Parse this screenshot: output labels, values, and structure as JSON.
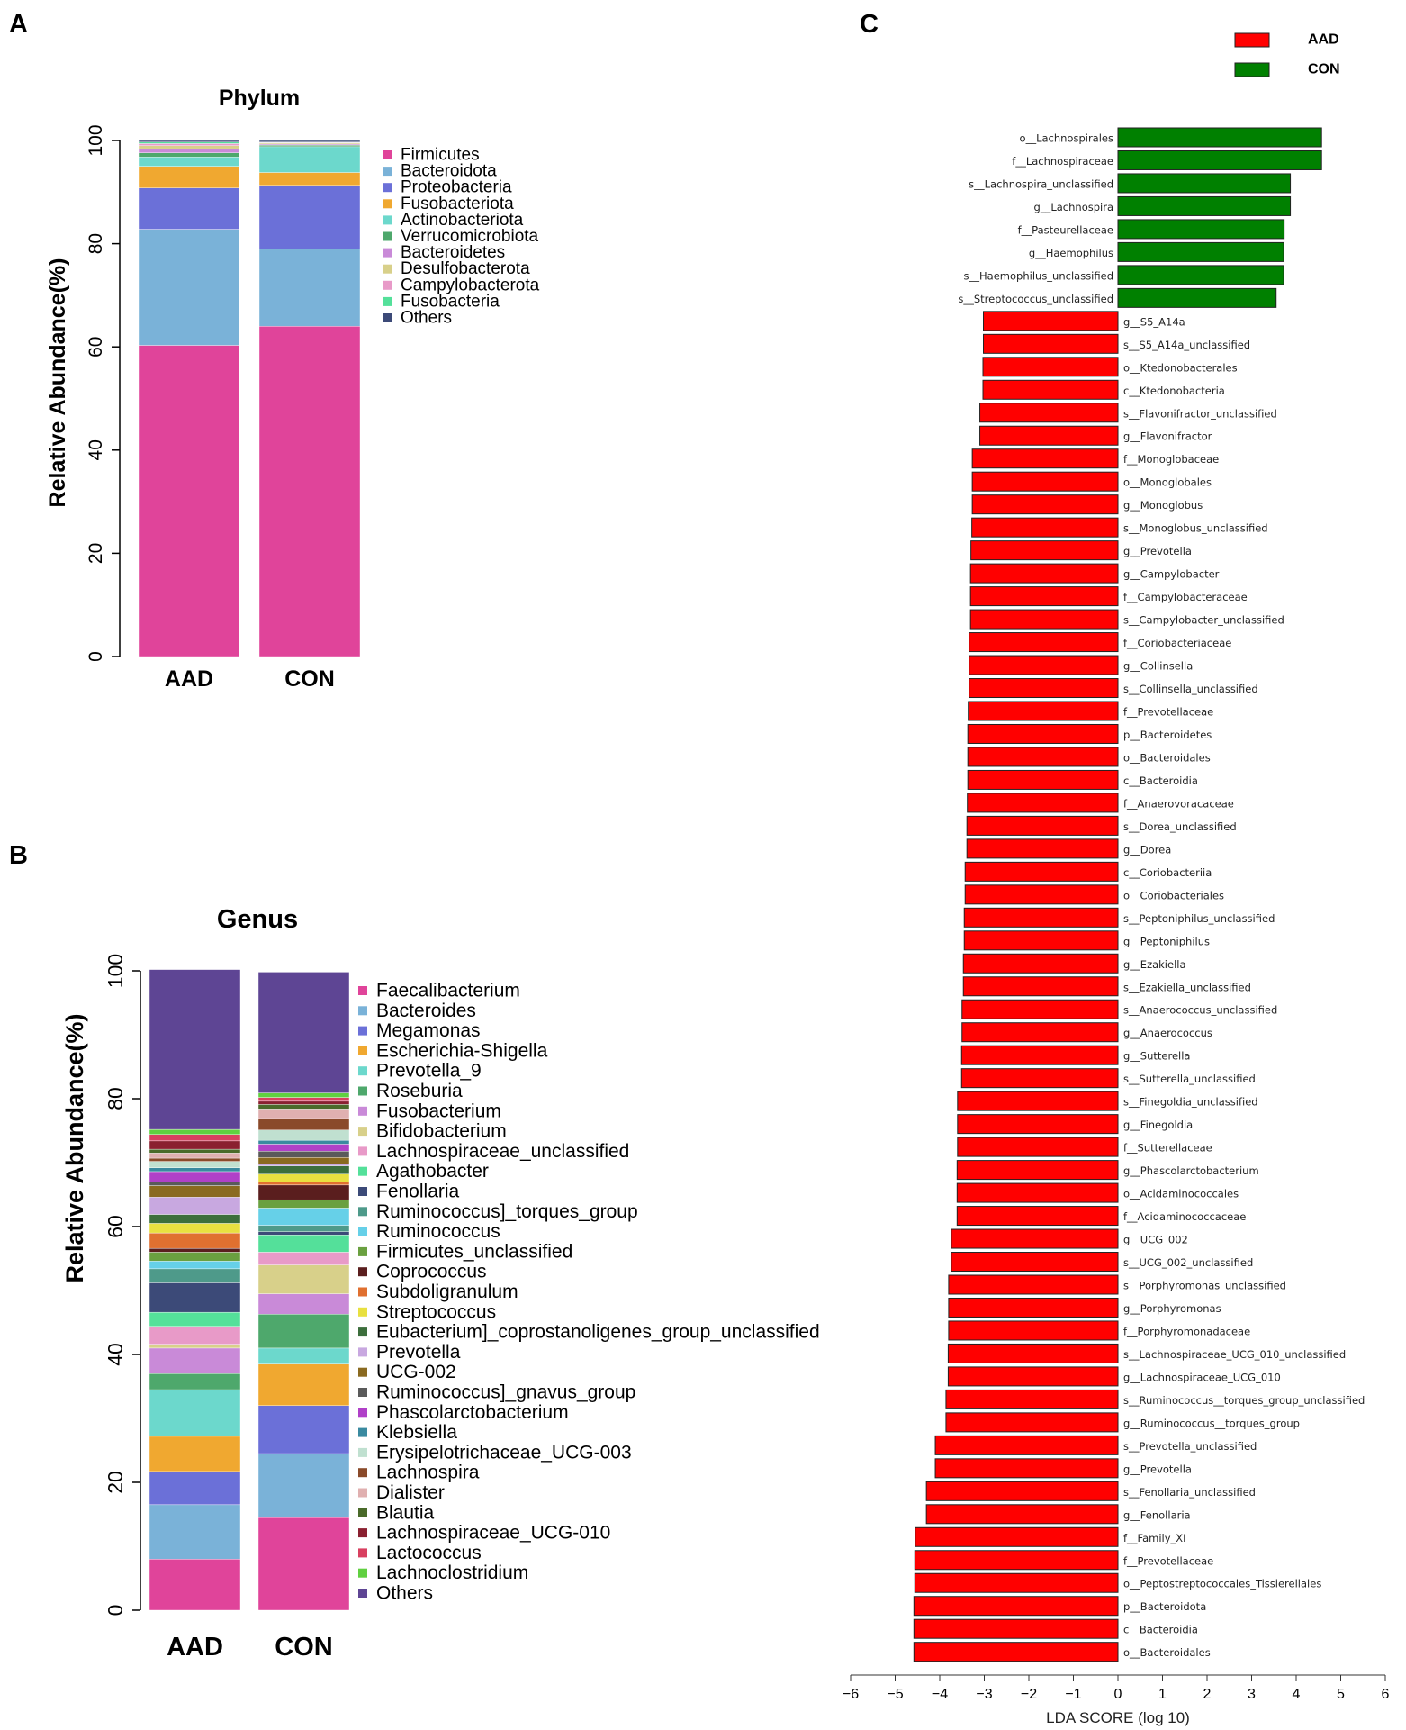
{
  "panels": {
    "a": "A",
    "b": "B",
    "c": "C"
  },
  "chart_data": [
    {
      "type": "bar",
      "stacked": true,
      "title": "Phylum",
      "ylabel": "Relative Abundance(%)",
      "xlabel": "",
      "ylim": [
        0,
        100
      ],
      "yticks": [
        "0",
        "20",
        "40",
        "60",
        "80",
        "100"
      ],
      "categories": [
        "AAD",
        "CON"
      ],
      "series": [
        {
          "name": "Firmicutes",
          "color": "#e0449a",
          "values": [
            60.3,
            64.0
          ]
        },
        {
          "name": "Bacteroidota",
          "color": "#7ab2d8",
          "values": [
            22.5,
            15.0
          ]
        },
        {
          "name": "Proteobacteria",
          "color": "#6b70d8",
          "values": [
            8.0,
            12.3
          ]
        },
        {
          "name": "Fusobacteriota",
          "color": "#f0a830",
          "values": [
            4.2,
            2.5
          ]
        },
        {
          "name": "Actinobacteriota",
          "color": "#6cd8cc",
          "values": [
            1.8,
            5.0
          ]
        },
        {
          "name": "Verrucomicrobiota",
          "color": "#4ea86c",
          "values": [
            0.8,
            0.3
          ]
        },
        {
          "name": "Bacteroidetes",
          "color": "#c98ad8",
          "values": [
            0.8,
            0.2
          ]
        },
        {
          "name": "Desulfobacterota",
          "color": "#d8d08a",
          "values": [
            0.6,
            0.2
          ]
        },
        {
          "name": "Campylobacterota",
          "color": "#e89ac8",
          "values": [
            0.4,
            0.1
          ]
        },
        {
          "name": "Fusobacteria",
          "color": "#54e09a",
          "values": [
            0.3,
            0.1
          ]
        },
        {
          "name": "Others",
          "color": "#3c4a78",
          "values": [
            0.3,
            0.3
          ]
        }
      ]
    },
    {
      "type": "bar",
      "stacked": true,
      "title": "Genus",
      "ylabel": "Relative Abundance(%)",
      "xlabel": "",
      "ylim": [
        0,
        100
      ],
      "yticks": [
        "0",
        "20",
        "40",
        "60",
        "80",
        "100"
      ],
      "categories": [
        "AAD",
        "CON"
      ],
      "series": [
        {
          "name": "Faecalibacterium",
          "color": "#e0449a",
          "values": [
            8.0,
            14.5
          ]
        },
        {
          "name": "Bacteroides",
          "color": "#7ab2d8",
          "values": [
            8.5,
            10.0
          ]
        },
        {
          "name": "Megamonas",
          "color": "#6b70d8",
          "values": [
            5.2,
            7.5
          ]
        },
        {
          "name": "Escherichia-Shigella",
          "color": "#f0a830",
          "values": [
            5.5,
            6.5
          ]
        },
        {
          "name": "Prevotella_9",
          "color": "#6cd8cc",
          "values": [
            7.3,
            2.5
          ]
        },
        {
          "name": "Roseburia",
          "color": "#4ea86c",
          "values": [
            2.5,
            5.3
          ]
        },
        {
          "name": "Fusobacterium",
          "color": "#c98ad8",
          "values": [
            4.0,
            3.2
          ]
        },
        {
          "name": "Bifidobacterium",
          "color": "#d8d08a",
          "values": [
            0.6,
            4.5
          ]
        },
        {
          "name": "Lachnospiraceae_unclassified",
          "color": "#e89ac8",
          "values": [
            2.8,
            2.0
          ]
        },
        {
          "name": "Agathobacter",
          "color": "#54e09a",
          "values": [
            2.2,
            2.7
          ]
        },
        {
          "name": "Fenollaria",
          "color": "#3c4a78",
          "values": [
            4.6,
            0.5
          ]
        },
        {
          "name": "Ruminococcus]_torques_group",
          "color": "#4e9a8a",
          "values": [
            2.2,
            1.0
          ]
        },
        {
          "name": "Ruminococcus",
          "color": "#66d0e8",
          "values": [
            1.2,
            2.7
          ]
        },
        {
          "name": "Firmicutes_unclassified",
          "color": "#6aa040",
          "values": [
            1.4,
            1.3
          ]
        },
        {
          "name": "Coprococcus",
          "color": "#5a1e1e",
          "values": [
            0.6,
            2.3
          ]
        },
        {
          "name": "Subdoligranulum",
          "color": "#e07030",
          "values": [
            2.4,
            0.5
          ]
        },
        {
          "name": "Streptococcus",
          "color": "#e8e040",
          "values": [
            1.5,
            1.2
          ]
        },
        {
          "name": "Eubacterium]_coprostanoligenes_group_unclassified",
          "color": "#3c6e3c",
          "values": [
            1.4,
            1.3
          ]
        },
        {
          "name": "Prevotella",
          "color": "#c8a8e0",
          "values": [
            2.7,
            0.3
          ]
        },
        {
          "name": "UCG-002",
          "color": "#8a6a20",
          "values": [
            1.8,
            1.0
          ]
        },
        {
          "name": "Ruminococcus]_gnavus_group",
          "color": "#5a5a5a",
          "values": [
            0.6,
            1.0
          ]
        },
        {
          "name": "Phascolarctobacterium",
          "color": "#b040c8",
          "values": [
            1.6,
            1.1
          ]
        },
        {
          "name": "Klebsiella",
          "color": "#3a8aa0",
          "values": [
            0.6,
            0.6
          ]
        },
        {
          "name": "Erysipelotrichaceae_UCG-003",
          "color": "#c0e0d0",
          "values": [
            1.0,
            1.6
          ]
        },
        {
          "name": "Lachnospira",
          "color": "#8a4a2a",
          "values": [
            0.5,
            1.8
          ]
        },
        {
          "name": "Dialister",
          "color": "#e0b0b0",
          "values": [
            0.8,
            1.5
          ]
        },
        {
          "name": "Blautia",
          "color": "#4a6a2a",
          "values": [
            0.6,
            0.7
          ]
        },
        {
          "name": "Lachnospiraceae_UCG-010",
          "color": "#8a2030",
          "values": [
            1.3,
            0.5
          ]
        },
        {
          "name": "Lactococcus",
          "color": "#d84060",
          "values": [
            1.0,
            0.6
          ]
        },
        {
          "name": "Lachnoclostridium",
          "color": "#60d040",
          "values": [
            0.8,
            0.7
          ]
        },
        {
          "name": "Others",
          "color": "#5e4594",
          "values": [
            25.0,
            18.9
          ]
        }
      ]
    },
    {
      "type": "bar",
      "orientation": "horizontal",
      "title": "",
      "xlabel": "LDA SCORE (log 10)",
      "xlim": [
        -6,
        6
      ],
      "xticks": [
        "−6",
        "−5",
        "−4",
        "−3",
        "−2",
        "−1",
        "0",
        "1",
        "2",
        "3",
        "4",
        "5",
        "6"
      ],
      "legend": [
        {
          "name": "AAD",
          "color": "#ff0000"
        },
        {
          "name": "CON",
          "color": "#008000"
        }
      ],
      "bars": [
        {
          "label": "o__Lachnospirales",
          "value": 4.57,
          "group": "CON"
        },
        {
          "label": "f__Lachnospiraceae",
          "value": 4.57,
          "group": "CON"
        },
        {
          "label": "s__Lachnospira_unclassified",
          "value": 3.87,
          "group": "CON"
        },
        {
          "label": "g__Lachnospira",
          "value": 3.87,
          "group": "CON"
        },
        {
          "label": "f__Pasteurellaceae",
          "value": 3.73,
          "group": "CON"
        },
        {
          "label": "g__Haemophilus",
          "value": 3.72,
          "group": "CON"
        },
        {
          "label": "s__Haemophilus_unclassified",
          "value": 3.72,
          "group": "CON"
        },
        {
          "label": "s__Streptococcus_unclassified",
          "value": 3.55,
          "group": "CON"
        },
        {
          "label": "g__S5_A14a",
          "value": -3.02,
          "group": "AAD"
        },
        {
          "label": "s__S5_A14a_unclassified",
          "value": -3.02,
          "group": "AAD"
        },
        {
          "label": "o__Ktedonobacterales",
          "value": -3.03,
          "group": "AAD"
        },
        {
          "label": "c__Ktedonobacteria",
          "value": -3.03,
          "group": "AAD"
        },
        {
          "label": "s__Flavonifractor_unclassified",
          "value": -3.1,
          "group": "AAD"
        },
        {
          "label": "g__Flavonifractor",
          "value": -3.1,
          "group": "AAD"
        },
        {
          "label": "f__Monoglobaceae",
          "value": -3.27,
          "group": "AAD"
        },
        {
          "label": "o__Monoglobales",
          "value": -3.27,
          "group": "AAD"
        },
        {
          "label": "g__Monoglobus",
          "value": -3.27,
          "group": "AAD"
        },
        {
          "label": "s__Monoglobus_unclassified",
          "value": -3.28,
          "group": "AAD"
        },
        {
          "label": "g__Prevotella",
          "value": -3.3,
          "group": "AAD"
        },
        {
          "label": "g__Campylobacter",
          "value": -3.31,
          "group": "AAD"
        },
        {
          "label": "f__Campylobacteraceae",
          "value": -3.31,
          "group": "AAD"
        },
        {
          "label": "s__Campylobacter_unclassified",
          "value": -3.31,
          "group": "AAD"
        },
        {
          "label": "f__Coriobacteriaceae",
          "value": -3.34,
          "group": "AAD"
        },
        {
          "label": "g__Collinsella",
          "value": -3.34,
          "group": "AAD"
        },
        {
          "label": "s__Collinsella_unclassified",
          "value": -3.34,
          "group": "AAD"
        },
        {
          "label": "f__Prevotellaceae",
          "value": -3.36,
          "group": "AAD"
        },
        {
          "label": "p__Bacteroidetes",
          "value": -3.37,
          "group": "AAD"
        },
        {
          "label": "o__Bacteroidales",
          "value": -3.37,
          "group": "AAD"
        },
        {
          "label": "c__Bacteroidia",
          "value": -3.37,
          "group": "AAD"
        },
        {
          "label": "f__Anaerovoracaceae",
          "value": -3.38,
          "group": "AAD"
        },
        {
          "label": "s__Dorea_unclassified",
          "value": -3.39,
          "group": "AAD"
        },
        {
          "label": "g__Dorea",
          "value": -3.39,
          "group": "AAD"
        },
        {
          "label": "c__Coriobacteriia",
          "value": -3.43,
          "group": "AAD"
        },
        {
          "label": "o__Coriobacteriales",
          "value": -3.43,
          "group": "AAD"
        },
        {
          "label": "s__Peptoniphilus_unclassified",
          "value": -3.45,
          "group": "AAD"
        },
        {
          "label": "g__Peptoniphilus",
          "value": -3.45,
          "group": "AAD"
        },
        {
          "label": "g__Ezakiella",
          "value": -3.47,
          "group": "AAD"
        },
        {
          "label": "s__Ezakiella_unclassified",
          "value": -3.47,
          "group": "AAD"
        },
        {
          "label": "s__Anaerococcus_unclassified",
          "value": -3.5,
          "group": "AAD"
        },
        {
          "label": "g__Anaerococcus",
          "value": -3.5,
          "group": "AAD"
        },
        {
          "label": "g__Sutterella",
          "value": -3.51,
          "group": "AAD"
        },
        {
          "label": "s__Sutterella_unclassified",
          "value": -3.51,
          "group": "AAD"
        },
        {
          "label": "s__Finegoldia_unclassified",
          "value": -3.6,
          "group": "AAD"
        },
        {
          "label": "g__Finegoldia",
          "value": -3.6,
          "group": "AAD"
        },
        {
          "label": "f__Sutterellaceae",
          "value": -3.6,
          "group": "AAD"
        },
        {
          "label": "g__Phascolarctobacterium",
          "value": -3.61,
          "group": "AAD"
        },
        {
          "label": "o__Acidaminococcales",
          "value": -3.61,
          "group": "AAD"
        },
        {
          "label": "f__Acidaminococcaceae",
          "value": -3.61,
          "group": "AAD"
        },
        {
          "label": "g__UCG_002",
          "value": -3.74,
          "group": "AAD"
        },
        {
          "label": "s__UCG_002_unclassified",
          "value": -3.74,
          "group": "AAD"
        },
        {
          "label": "s__Porphyromonas_unclassified",
          "value": -3.8,
          "group": "AAD"
        },
        {
          "label": "g__Porphyromonas",
          "value": -3.8,
          "group": "AAD"
        },
        {
          "label": "f__Porphyromonadaceae",
          "value": -3.8,
          "group": "AAD"
        },
        {
          "label": "s__Lachnospiraceae_UCG_010_unclassified",
          "value": -3.81,
          "group": "AAD"
        },
        {
          "label": "g__Lachnospiraceae_UCG_010",
          "value": -3.81,
          "group": "AAD"
        },
        {
          "label": "s__Ruminococcus__torques_group_unclassified",
          "value": -3.86,
          "group": "AAD"
        },
        {
          "label": "g__Ruminococcus__torques_group",
          "value": -3.86,
          "group": "AAD"
        },
        {
          "label": "s__Prevotella_unclassified",
          "value": -4.1,
          "group": "AAD"
        },
        {
          "label": "g__Prevotella",
          "value": -4.1,
          "group": "AAD"
        },
        {
          "label": "s__Fenollaria_unclassified",
          "value": -4.3,
          "group": "AAD"
        },
        {
          "label": "g__Fenollaria",
          "value": -4.3,
          "group": "AAD"
        },
        {
          "label": "f__Family_XI",
          "value": -4.55,
          "group": "AAD"
        },
        {
          "label": "f__Prevotellaceae",
          "value": -4.56,
          "group": "AAD"
        },
        {
          "label": "o__Peptostreptococcales_Tissierellales",
          "value": -4.56,
          "group": "AAD"
        },
        {
          "label": "p__Bacteroidota",
          "value": -4.58,
          "group": "AAD"
        },
        {
          "label": "c__Bacteroidia",
          "value": -4.58,
          "group": "AAD"
        },
        {
          "label": "o__Bacteroidales",
          "value": -4.58,
          "group": "AAD"
        }
      ]
    }
  ]
}
